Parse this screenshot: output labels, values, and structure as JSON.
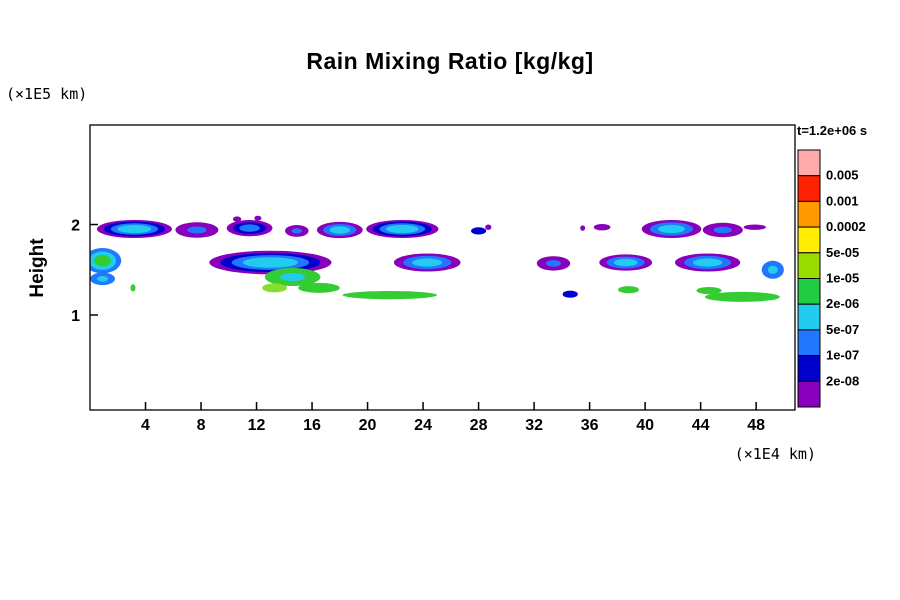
{
  "title": "Rain Mixing Ratio [kg/kg]",
  "time_label": "t=1.2e+06 s",
  "axes": {
    "y_label": "Height",
    "y_units": "(×1E5 km)",
    "x_units": "(×1E4 km)"
  },
  "chart_data": {
    "type": "heatmap",
    "subtype": "filled_contour_plot",
    "title": "Rain Mixing Ratio [kg/kg]",
    "time_annotation": "t=1.2e+06 s",
    "xlabel": "(×1E4 km)",
    "ylabel": "Height (×1E5 km)",
    "xlim": [
      0,
      50.8
    ],
    "ylim": [
      -0.05,
      3.1
    ],
    "x_ticks": [
      4,
      8,
      12,
      16,
      20,
      24,
      28,
      32,
      36,
      40,
      44,
      48
    ],
    "y_ticks": [
      1,
      2
    ],
    "grid": false,
    "legend_position": "right",
    "colorbar": {
      "boundary_labels_top_to_bottom": [
        "0.005",
        "0.001",
        "0.0002",
        "5e-05",
        "1e-05",
        "2e-06",
        "5e-07",
        "1e-07",
        "2e-08"
      ],
      "colors_top_to_bottom": [
        "#ffaaaa",
        "#ff2200",
        "#ff9900",
        "#ffee00",
        "#99dd00",
        "#22cc44",
        "#22ccee",
        "#2277ff",
        "#0000cc",
        "#8800bb"
      ]
    },
    "palette": {
      "purple": "#8800bb",
      "darkblue": "#0000cc",
      "blue": "#2277ff",
      "cyan": "#22ccee",
      "green": "#33cc33",
      "lightgreen": "#88dd33"
    },
    "blobs": [
      {
        "cx": 3.2,
        "cy": 1.95,
        "rx": 2.7,
        "ry": 0.1,
        "layers": [
          "purple",
          "darkblue",
          "blue",
          "cyan"
        ]
      },
      {
        "cx": 7.7,
        "cy": 1.94,
        "rx": 1.55,
        "ry": 0.085,
        "layers": [
          "purple",
          "blue"
        ]
      },
      {
        "cx": 11.5,
        "cy": 1.96,
        "rx": 1.65,
        "ry": 0.09,
        "layers": [
          "purple",
          "darkblue",
          "blue"
        ]
      },
      {
        "cx": 10.6,
        "cy": 2.06,
        "rx": 0.3,
        "ry": 0.03,
        "layers": [
          "purple"
        ]
      },
      {
        "cx": 12.1,
        "cy": 2.07,
        "rx": 0.25,
        "ry": 0.028,
        "layers": [
          "purple"
        ]
      },
      {
        "cx": 14.9,
        "cy": 1.93,
        "rx": 0.85,
        "ry": 0.065,
        "layers": [
          "purple",
          "blue"
        ]
      },
      {
        "cx": 18.0,
        "cy": 1.94,
        "rx": 1.65,
        "ry": 0.09,
        "layers": [
          "purple",
          "blue",
          "cyan"
        ]
      },
      {
        "cx": 22.5,
        "cy": 1.95,
        "rx": 2.6,
        "ry": 0.1,
        "layers": [
          "purple",
          "darkblue",
          "blue",
          "cyan"
        ]
      },
      {
        "cx": 28.0,
        "cy": 1.93,
        "rx": 0.55,
        "ry": 0.04,
        "layers": [
          "darkblue"
        ]
      },
      {
        "cx": 28.7,
        "cy": 1.97,
        "rx": 0.22,
        "ry": 0.03,
        "layers": [
          "purple"
        ]
      },
      {
        "cx": 35.5,
        "cy": 1.96,
        "rx": 0.18,
        "ry": 0.03,
        "layers": [
          "purple"
        ]
      },
      {
        "cx": 36.9,
        "cy": 1.97,
        "rx": 0.6,
        "ry": 0.035,
        "layers": [
          "purple"
        ]
      },
      {
        "cx": 41.9,
        "cy": 1.95,
        "rx": 2.15,
        "ry": 0.1,
        "layers": [
          "purple",
          "blue",
          "cyan"
        ]
      },
      {
        "cx": 45.6,
        "cy": 1.94,
        "rx": 1.45,
        "ry": 0.08,
        "layers": [
          "purple",
          "blue"
        ]
      },
      {
        "cx": 47.9,
        "cy": 1.97,
        "rx": 0.8,
        "ry": 0.03,
        "layers": [
          "purple"
        ]
      },
      {
        "cx": 0.9,
        "cy": 1.6,
        "rx": 1.35,
        "ry": 0.14,
        "layers": [
          "blue",
          "cyan",
          "green"
        ]
      },
      {
        "cx": 0.9,
        "cy": 1.4,
        "rx": 0.9,
        "ry": 0.07,
        "layers": [
          "blue",
          "cyan"
        ]
      },
      {
        "cx": 13.0,
        "cy": 1.58,
        "rx": 4.4,
        "ry": 0.13,
        "layers": [
          "purple",
          "darkblue",
          "blue",
          "cyan"
        ]
      },
      {
        "cx": 14.6,
        "cy": 1.42,
        "rx": 2.0,
        "ry": 0.1,
        "layers": [
          "green",
          "cyan"
        ]
      },
      {
        "cx": 16.5,
        "cy": 1.3,
        "rx": 1.5,
        "ry": 0.055,
        "layers": [
          "green"
        ]
      },
      {
        "cx": 13.3,
        "cy": 1.3,
        "rx": 0.9,
        "ry": 0.05,
        "layers": [
          "lightgreen"
        ]
      },
      {
        "cx": 24.3,
        "cy": 1.58,
        "rx": 2.4,
        "ry": 0.1,
        "layers": [
          "purple",
          "blue",
          "cyan"
        ]
      },
      {
        "cx": 33.4,
        "cy": 1.57,
        "rx": 1.2,
        "ry": 0.08,
        "layers": [
          "purple",
          "blue"
        ]
      },
      {
        "cx": 38.6,
        "cy": 1.58,
        "rx": 1.9,
        "ry": 0.09,
        "layers": [
          "purple",
          "blue",
          "cyan"
        ]
      },
      {
        "cx": 44.5,
        "cy": 1.58,
        "rx": 2.35,
        "ry": 0.1,
        "layers": [
          "purple",
          "blue",
          "cyan"
        ]
      },
      {
        "cx": 49.2,
        "cy": 1.5,
        "rx": 0.8,
        "ry": 0.1,
        "layers": [
          "blue",
          "cyan"
        ]
      },
      {
        "cx": 21.6,
        "cy": 1.22,
        "rx": 3.4,
        "ry": 0.045,
        "layers": [
          "green"
        ]
      },
      {
        "cx": 3.1,
        "cy": 1.3,
        "rx": 0.18,
        "ry": 0.04,
        "layers": [
          "green"
        ]
      },
      {
        "cx": 34.6,
        "cy": 1.23,
        "rx": 0.55,
        "ry": 0.04,
        "layers": [
          "darkblue"
        ]
      },
      {
        "cx": 38.8,
        "cy": 1.28,
        "rx": 0.75,
        "ry": 0.04,
        "layers": [
          "green"
        ]
      },
      {
        "cx": 44.6,
        "cy": 1.27,
        "rx": 0.9,
        "ry": 0.04,
        "layers": [
          "green"
        ]
      },
      {
        "cx": 47.0,
        "cy": 1.2,
        "rx": 2.7,
        "ry": 0.055,
        "layers": [
          "green"
        ]
      }
    ]
  }
}
